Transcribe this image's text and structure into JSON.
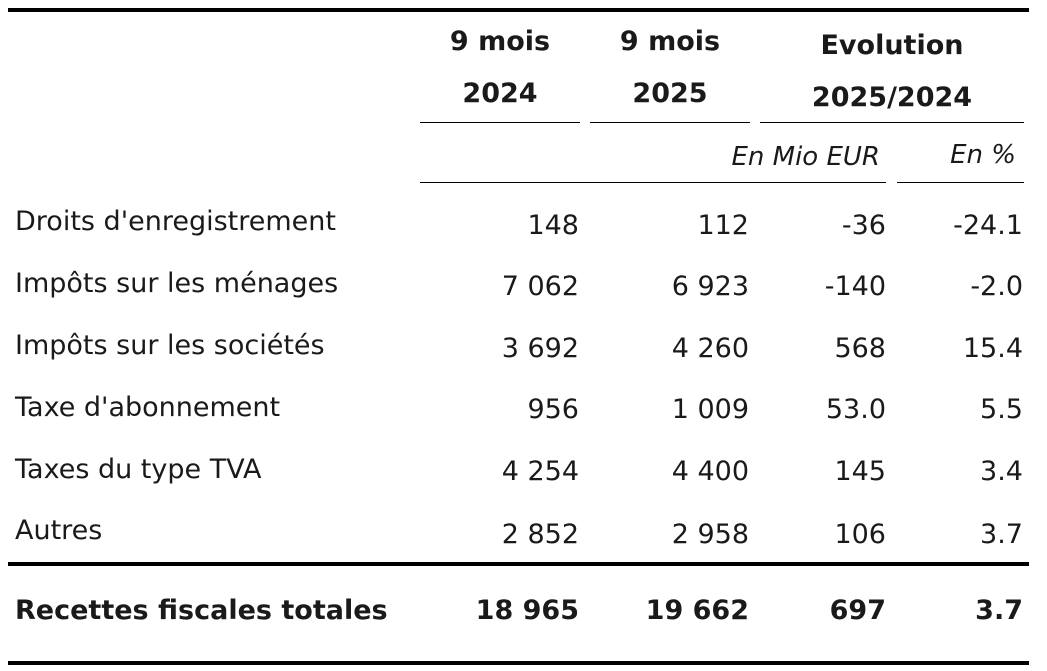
{
  "table": {
    "columns": [
      {
        "line1": "9 mois",
        "line2": "2024"
      },
      {
        "line1": "9 mois",
        "line2": "2025"
      },
      {
        "line1": "Evolution",
        "line2": "2025/2024"
      }
    ],
    "units": {
      "mio": "En Mio EUR",
      "pct": "En %"
    },
    "rows": [
      {
        "label": "Droits d'enregistrement",
        "y2024": "148",
        "y2025": "112",
        "evol": "-36",
        "pct": "-24.1"
      },
      {
        "label": "Impôts sur les ménages",
        "y2024": "7 062",
        "y2025": "6 923",
        "evol": "-140",
        "pct": "-2.0"
      },
      {
        "label": "Impôts sur les sociétés",
        "y2024": "3 692",
        "y2025": "4 260",
        "evol": "568",
        "pct": "15.4"
      },
      {
        "label": "Taxe d'abonnement",
        "y2024": "956",
        "y2025": "1 009",
        "evol": "53.0",
        "pct": "5.5"
      },
      {
        "label": "Taxes du type TVA",
        "y2024": "4 254",
        "y2025": "4 400",
        "evol": "145",
        "pct": "3.4"
      },
      {
        "label": "Autres",
        "y2024": "2 852",
        "y2025": "2 958",
        "evol": "106",
        "pct": "3.7"
      }
    ],
    "total": {
      "label": "Recettes fiscales totales",
      "y2024": "18 965",
      "y2025": "19 662",
      "evol": "697",
      "pct": "3.7"
    }
  }
}
